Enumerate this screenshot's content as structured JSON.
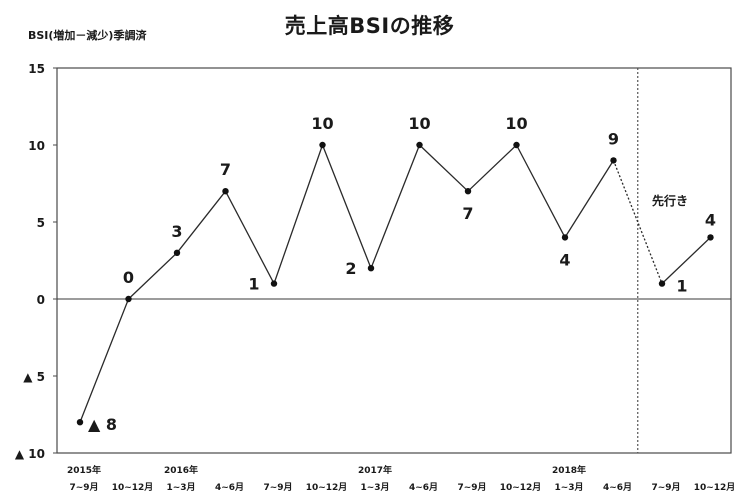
{
  "chart_data": {
    "type": "line",
    "title": "売上高BSIの推移",
    "ylabel": "BSI(増加－減少)季調済",
    "ylim": [
      -10,
      15
    ],
    "yticks": [
      {
        "value": 15,
        "label": "15"
      },
      {
        "value": 10,
        "label": "10"
      },
      {
        "value": 5,
        "label": "5"
      },
      {
        "value": 0,
        "label": "0"
      },
      {
        "value": -5,
        "label": "▲ 5"
      },
      {
        "value": -10,
        "label": "▲ 10"
      }
    ],
    "categories": [
      "7~9月",
      "10~12月",
      "1~3月",
      "4~6月",
      "7~9月",
      "10~12月",
      "1~3月",
      "4~6月",
      "7~9月",
      "10~12月",
      "1~3月",
      "4~6月",
      "7~9月",
      "10~12月"
    ],
    "year_labels": [
      {
        "index": 0,
        "label": "2015年"
      },
      {
        "index": 2,
        "label": "2016年"
      },
      {
        "index": 6,
        "label": "2017年"
      },
      {
        "index": 10,
        "label": "2018年"
      }
    ],
    "values": [
      -8,
      0,
      3,
      7,
      1,
      10,
      2,
      10,
      7,
      10,
      4,
      9,
      1,
      4
    ],
    "data_labels": [
      "▲ 8",
      "0",
      "3",
      "7",
      "1",
      "10",
      "2",
      "10",
      "7",
      "10",
      "4",
      "9",
      "1",
      "4"
    ],
    "forecast_start_index": 12,
    "forecast_label": "先行き",
    "grid": false,
    "legend": "none"
  }
}
